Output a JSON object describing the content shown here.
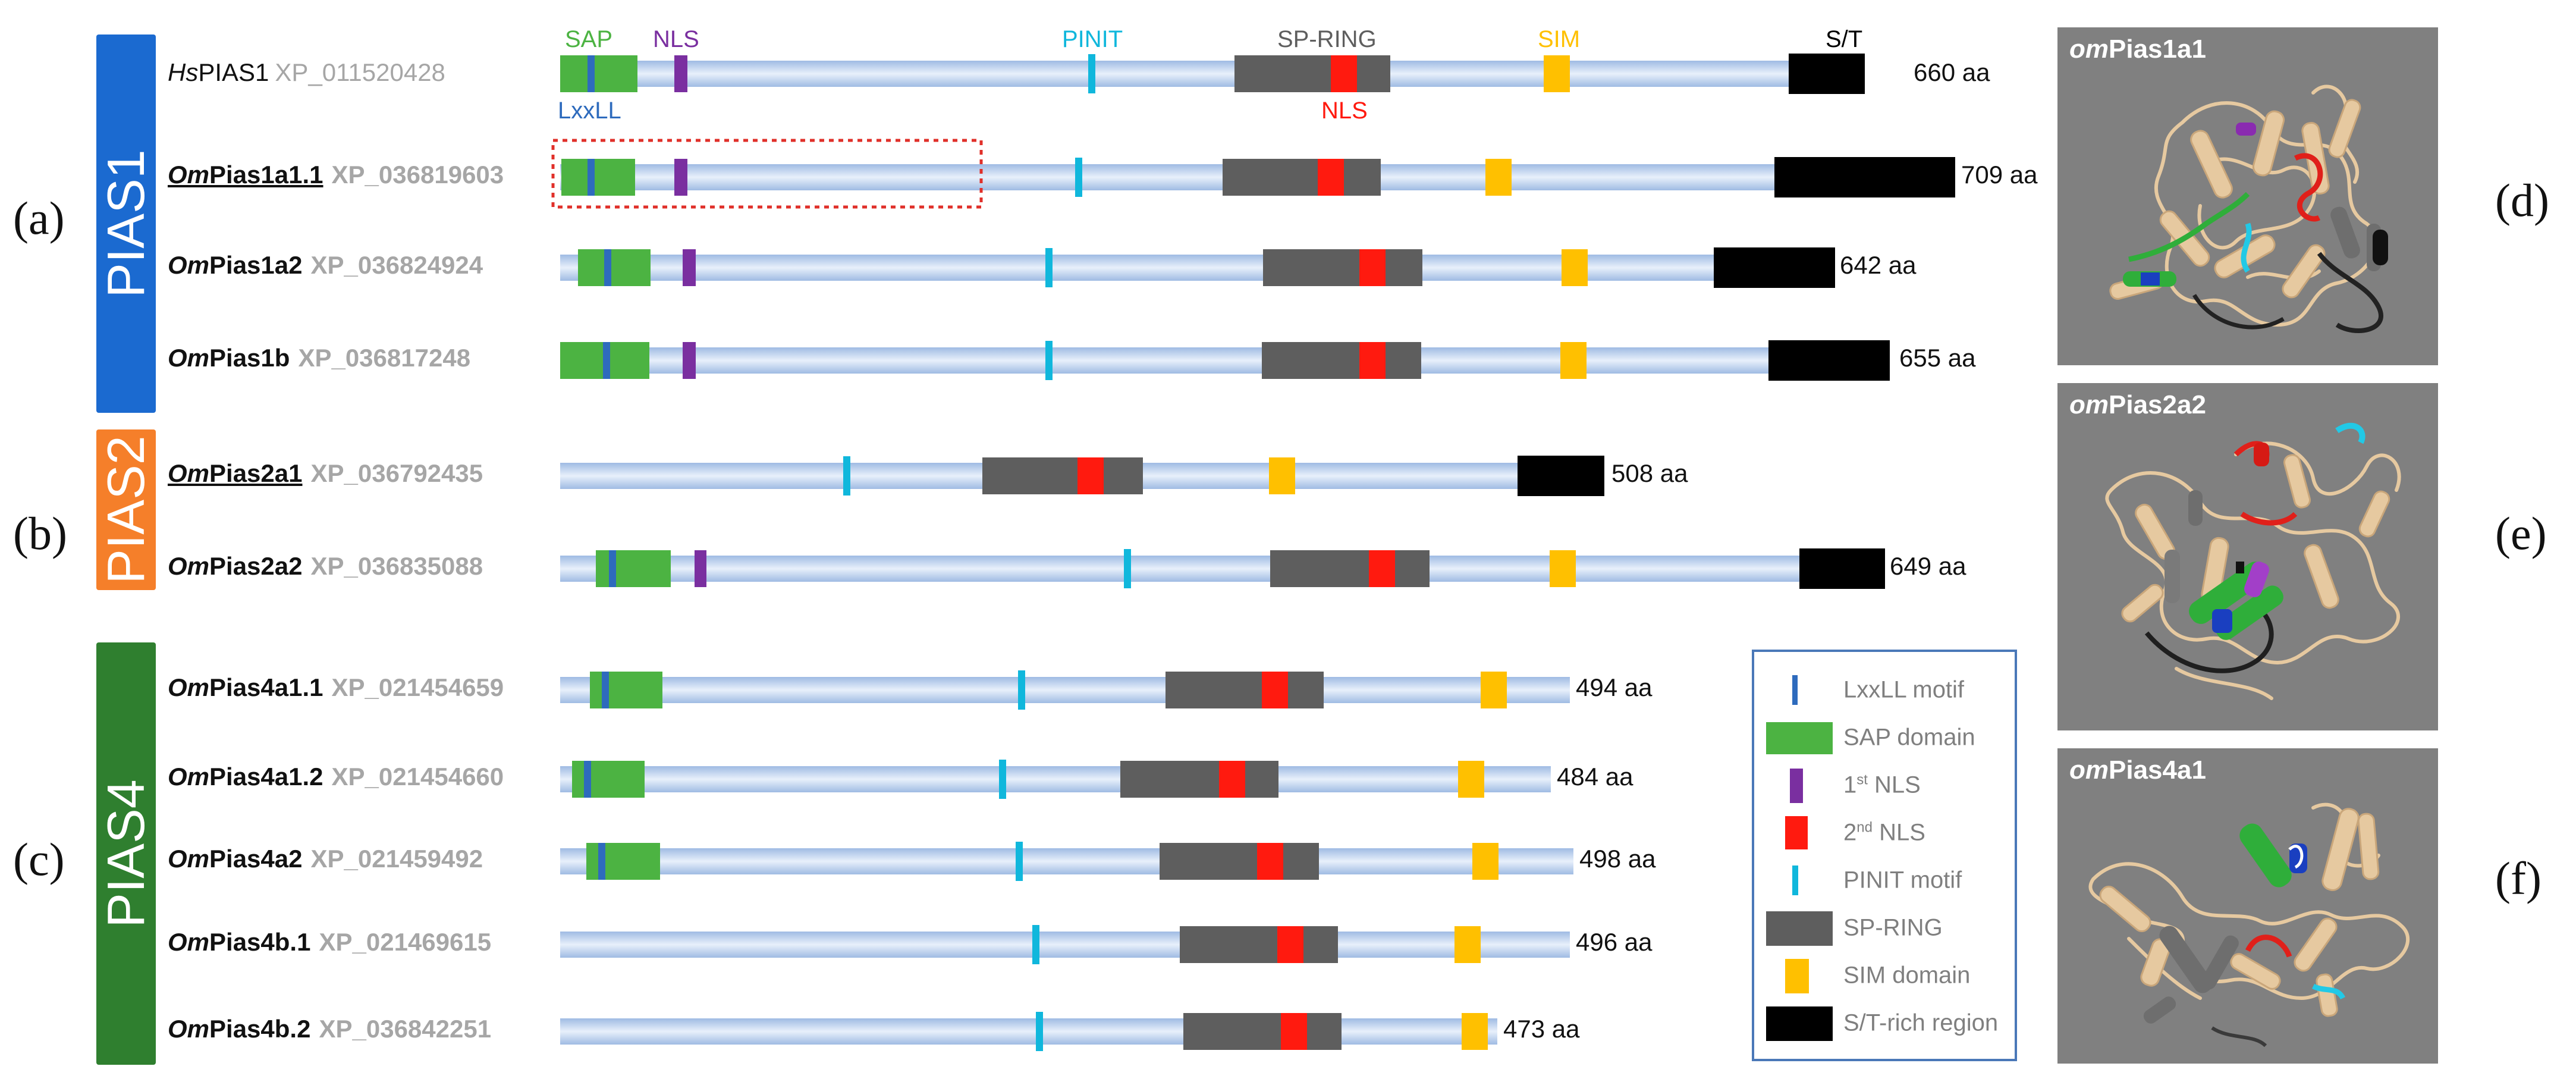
{
  "panels": {
    "a": "(a)",
    "b": "(b)",
    "c": "(c)",
    "d": "(d)",
    "e": "(e)",
    "f": "(f)"
  },
  "groups": [
    {
      "id": "pias1",
      "label": "PIAS1",
      "color": "#1b6ad0"
    },
    {
      "id": "pias2",
      "label": "PIAS2",
      "color": "#f57f2a"
    },
    {
      "id": "pias4",
      "label": "PIAS4",
      "color": "#2f7f2f"
    }
  ],
  "colors": {
    "backbone": "#c9daf1",
    "backbone_edge": "#9fbbe3",
    "lxxll": "#2e6bbd",
    "sap": "#4cb342",
    "nls1": "#7a2fa0",
    "nls2": "#ff1a0f",
    "pinit": "#10b7dc",
    "spring": "#5e5e5e",
    "sim": "#ffc000",
    "st": "#000000",
    "highlight": "#e0302a"
  },
  "top_labels": {
    "sap": "SAP",
    "nls": "NLS",
    "pinit": "PINIT",
    "spring": "SP-RING",
    "sim": "SIM",
    "st": "S/T",
    "lxxll": "LxxLL",
    "nls2": "NLS"
  },
  "proteins": [
    {
      "prefix": "Hs",
      "rest": "PIAS1",
      "acc": "XP_011520428",
      "length": "660 aa",
      "human": true
    },
    {
      "prefix": "Om",
      "rest": "Pias1a1.1",
      "acc": "XP_036819603",
      "length": "709 aa",
      "underline": true
    },
    {
      "prefix": "Om",
      "rest": "Pias1a2",
      "acc": "XP_036824924",
      "length": "642 aa"
    },
    {
      "prefix": "Om",
      "rest": "Pias1b",
      "acc": "XP_036817248",
      "length": "655 aa"
    },
    {
      "prefix": "Om",
      "rest": "Pias2a1",
      "acc": "XP_036792435",
      "length": "508 aa",
      "underline": true
    },
    {
      "prefix": "Om",
      "rest": "Pias2a2",
      "acc": "XP_036835088",
      "length": "649 aa"
    },
    {
      "prefix": "Om",
      "rest": "Pias4a1.1",
      "acc": "XP_021454659",
      "length": "494 aa"
    },
    {
      "prefix": "Om",
      "rest": "Pias4a1.2",
      "acc": "XP_021454660",
      "length": "484 aa"
    },
    {
      "prefix": "Om",
      "rest": "Pias4a2",
      "acc": "XP_021459492",
      "length": "498 aa"
    },
    {
      "prefix": "Om",
      "rest": "Pias4b.1",
      "acc": "XP_021469615",
      "length": "496 aa"
    },
    {
      "prefix": "Om",
      "rest": "Pias4b.2",
      "acc": "XP_036842251",
      "length": "473 aa"
    }
  ],
  "legend": [
    {
      "key": "lxxll",
      "label": "LxxLL motif"
    },
    {
      "key": "sap",
      "label": "SAP domain"
    },
    {
      "key": "nls1",
      "label": "NLS",
      "sup": "st",
      "supfirst": "1"
    },
    {
      "key": "nls2",
      "label": "NLS",
      "sup": "nd",
      "supfirst": "2"
    },
    {
      "key": "pinit",
      "label": "PINIT motif"
    },
    {
      "key": "spring",
      "label": "SP-RING"
    },
    {
      "key": "sim",
      "label": "SIM domain"
    },
    {
      "key": "st",
      "label": "S/T-rich region"
    }
  ],
  "structures": [
    {
      "prefix": "om",
      "rest": "Pias1a1"
    },
    {
      "prefix": "om",
      "rest": "Pias2a2"
    },
    {
      "prefix": "om",
      "rest": "Pias4a1"
    }
  ]
}
